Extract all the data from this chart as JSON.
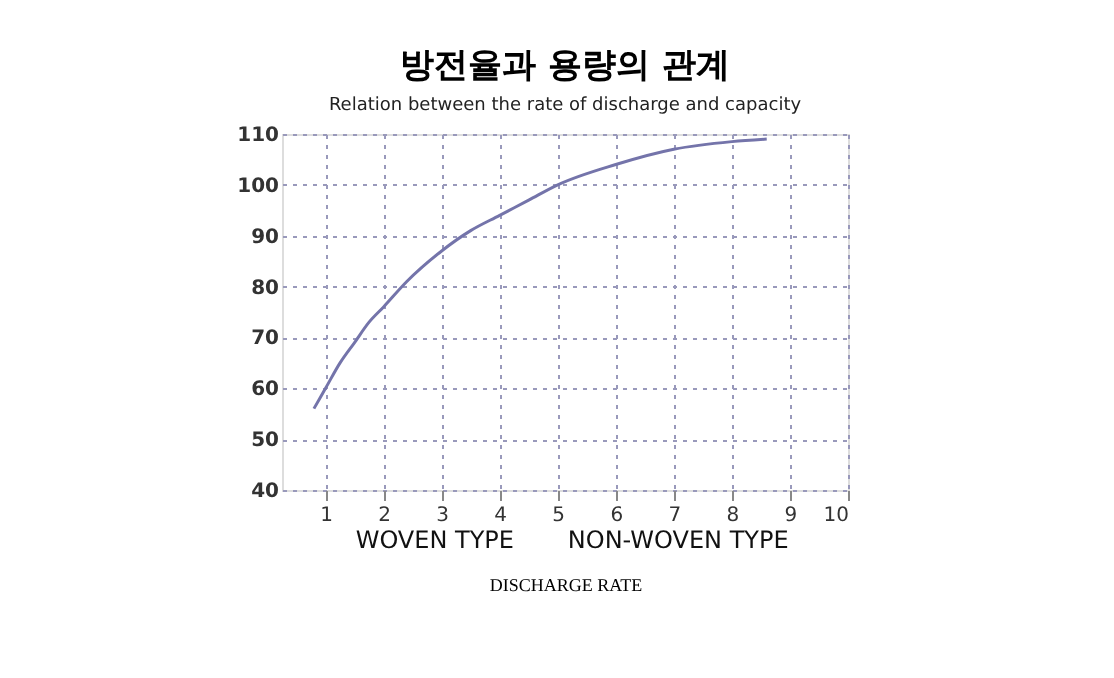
{
  "chart_data": {
    "type": "line",
    "title": "방전율과 용량의 관계",
    "subtitle": "Relation between the rate of discharge and capacity",
    "xlabel": "DISCHARGE RATE",
    "x": [
      0.8,
      1,
      1.25,
      1.5,
      1.75,
      2,
      2.4,
      3,
      3.5,
      4,
      4.5,
      5,
      6,
      7,
      8,
      8.6
    ],
    "series": [
      {
        "color": "#7474aa",
        "values": [
          56,
          60,
          65,
          69,
          73,
          76,
          81,
          87,
          91,
          94,
          97,
          100,
          104,
          107,
          108.5,
          109
        ]
      }
    ],
    "xlim": [
      0.25,
      10
    ],
    "xticks": [
      1,
      2,
      3,
      4,
      5,
      6,
      7,
      8,
      9,
      10
    ],
    "ylim": [
      40,
      110
    ],
    "yticks": [
      40,
      50,
      60,
      70,
      80,
      90,
      100,
      110
    ],
    "grid": true,
    "marker": "none",
    "line_style": "solid",
    "annotations": [
      "WOVEN TYPE",
      "NON-WOVEN TYPE"
    ]
  }
}
